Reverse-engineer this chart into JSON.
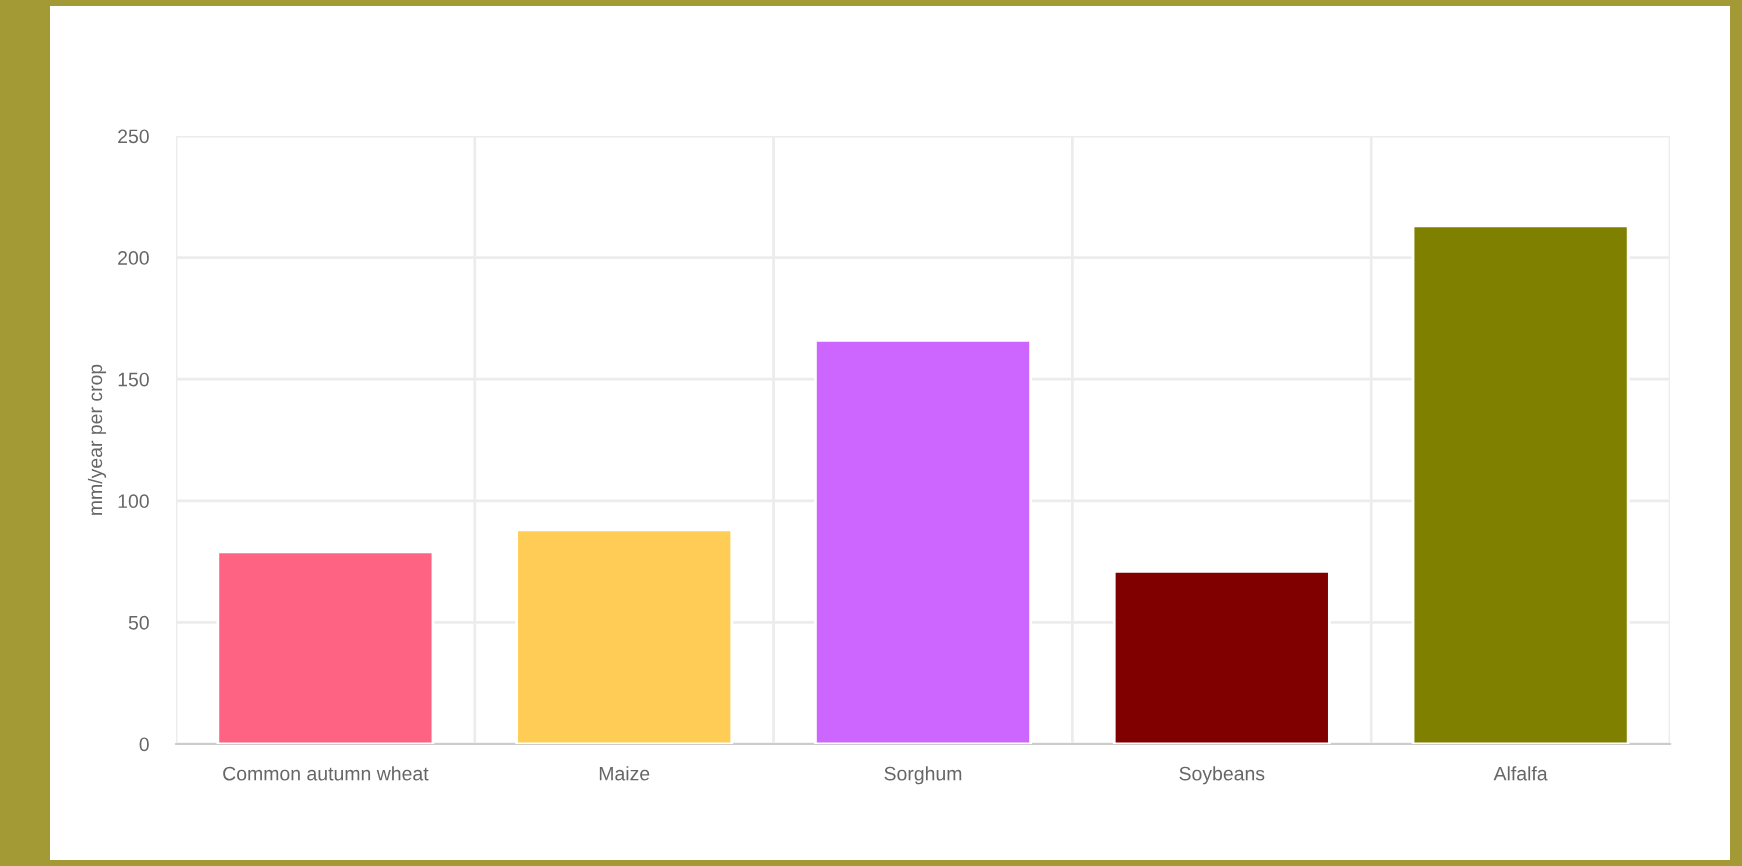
{
  "chart_data": {
    "type": "bar",
    "ylabel": "mm/year per crop",
    "categories": [
      "Common autumn wheat",
      "Maize",
      "Sorghum",
      "Soybeans",
      "Alfalfa"
    ],
    "values": [
      79,
      88,
      166,
      71,
      213
    ],
    "colors": [
      "#ff6384",
      "#ffcd56",
      "#cc66ff",
      "#800000",
      "#808000"
    ],
    "ylim": [
      0,
      250
    ],
    "yticks": [
      0,
      50,
      100,
      150,
      200,
      250
    ],
    "grid": true
  }
}
